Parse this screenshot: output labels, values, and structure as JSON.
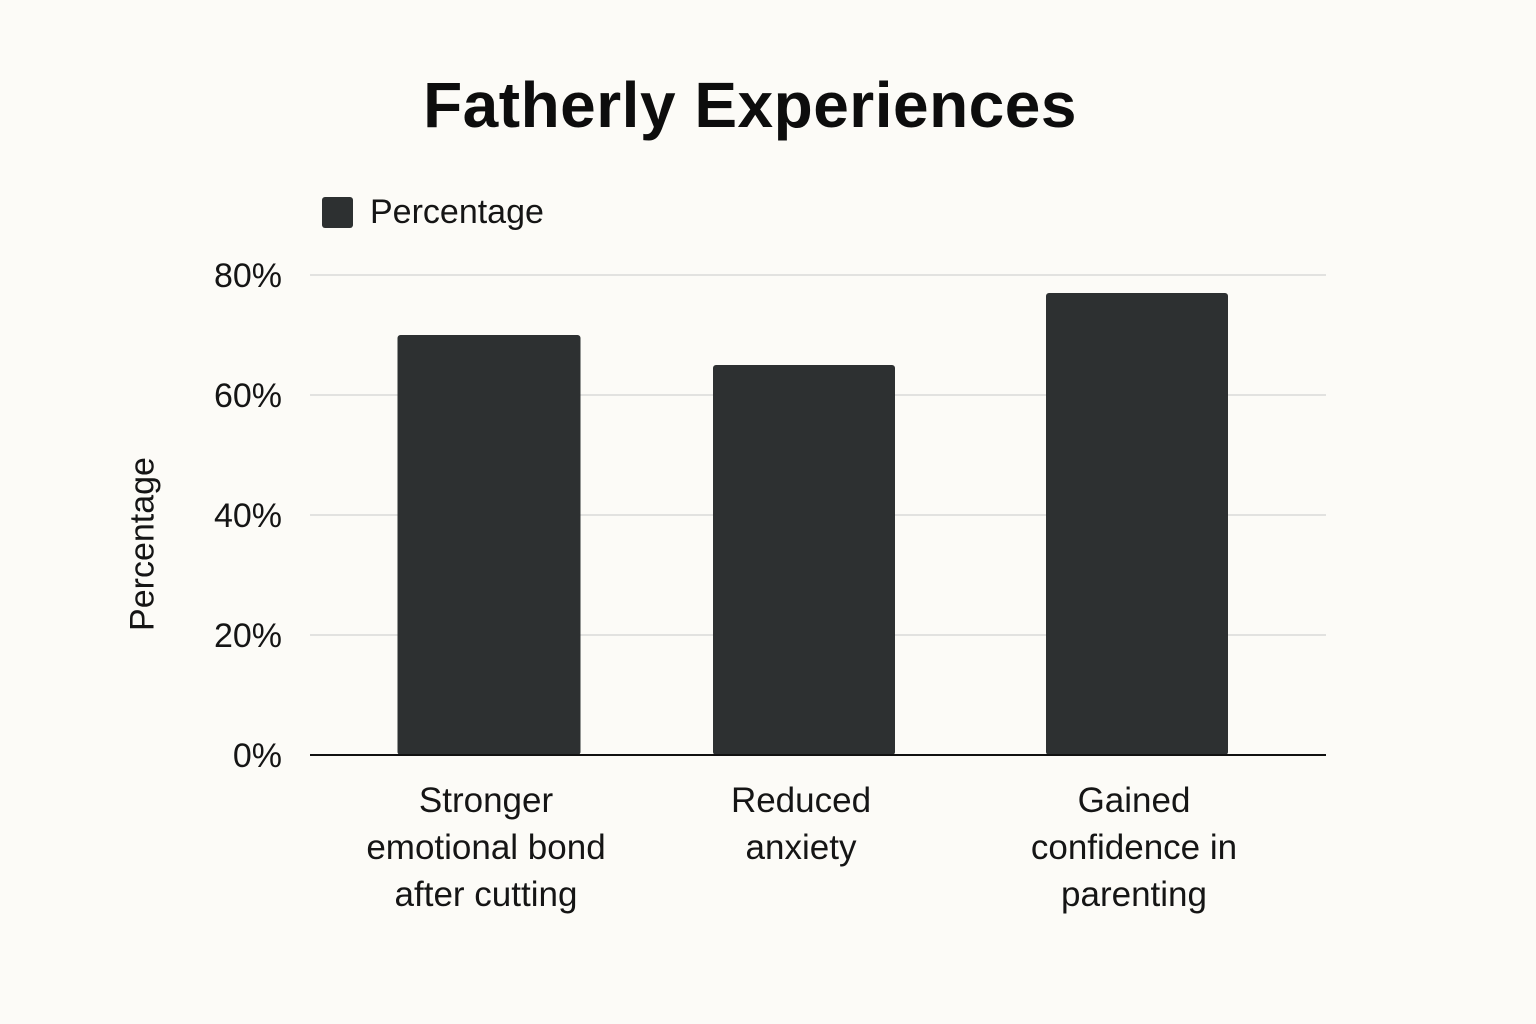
{
  "chart_data": {
    "type": "bar",
    "title": "Fatherly Experiences",
    "xlabel": "",
    "ylabel": "Percentage",
    "legend": {
      "entries": [
        "Percentage"
      ],
      "position": "top-left"
    },
    "categories": [
      [
        "Stronger",
        "emotional bond",
        "after cutting"
      ],
      [
        "Reduced",
        "anxiety"
      ],
      [
        "Gained",
        "confidence in",
        "parenting"
      ]
    ],
    "series": [
      {
        "name": "Percentage",
        "values": [
          70,
          65,
          77
        ]
      }
    ],
    "ylim": [
      0,
      80
    ],
    "yticks": [
      0,
      20,
      40,
      60,
      80
    ],
    "ytick_labels": [
      "0%",
      "20%",
      "40%",
      "60%",
      "80%"
    ],
    "grid": true,
    "colors": {
      "bar": "#2d3031",
      "grid": "#c8c8c8",
      "axis": "#111111",
      "background": "#fcfbf7"
    }
  }
}
